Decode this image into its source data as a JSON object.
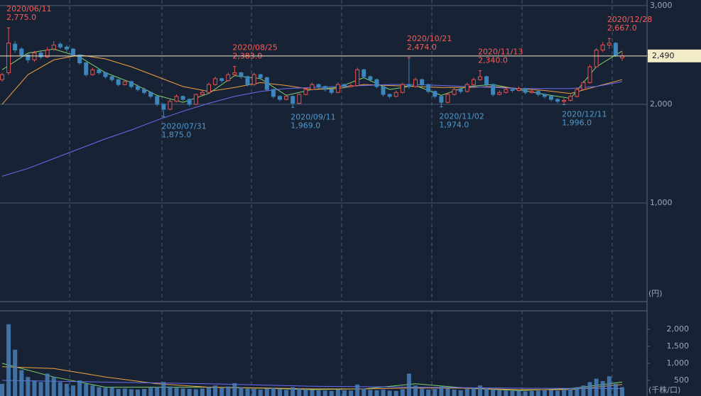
{
  "chart_data": {
    "type": "candlestick",
    "candles": [
      [
        2250,
        2320,
        2230,
        2300
      ],
      [
        2320,
        2775,
        2300,
        2620
      ],
      [
        2610,
        2640,
        2520,
        2550
      ],
      [
        2560,
        2580,
        2470,
        2500
      ],
      [
        2500,
        2520,
        2420,
        2450
      ],
      [
        2450,
        2540,
        2430,
        2520
      ],
      [
        2520,
        2550,
        2460,
        2480
      ],
      [
        2480,
        2580,
        2470,
        2550
      ],
      [
        2560,
        2640,
        2540,
        2600
      ],
      [
        2610,
        2630,
        2560,
        2580
      ],
      [
        2580,
        2600,
        2530,
        2560
      ],
      [
        2560,
        2570,
        2480,
        2500
      ],
      [
        2500,
        2510,
        2400,
        2420
      ],
      [
        2420,
        2430,
        2280,
        2300
      ],
      [
        2300,
        2370,
        2290,
        2350
      ],
      [
        2350,
        2360,
        2300,
        2320
      ],
      [
        2320,
        2330,
        2260,
        2280
      ],
      [
        2280,
        2300,
        2230,
        2250
      ],
      [
        2250,
        2260,
        2180,
        2200
      ],
      [
        2200,
        2250,
        2190,
        2230
      ],
      [
        2230,
        2240,
        2160,
        2180
      ],
      [
        2180,
        2200,
        2130,
        2150
      ],
      [
        2150,
        2170,
        2100,
        2120
      ],
      [
        2120,
        2130,
        2060,
        2080
      ],
      [
        2080,
        2090,
        1980,
        2000
      ],
      [
        2000,
        2010,
        1875,
        1950
      ],
      [
        1950,
        2050,
        1940,
        2030
      ],
      [
        2030,
        2100,
        2020,
        2080
      ],
      [
        2080,
        2090,
        2030,
        2050
      ],
      [
        2050,
        2060,
        1980,
        2000
      ],
      [
        2000,
        2110,
        1990,
        2100
      ],
      [
        2100,
        2140,
        2090,
        2120
      ],
      [
        2120,
        2220,
        2110,
        2200
      ],
      [
        2200,
        2280,
        2190,
        2260
      ],
      [
        2260,
        2270,
        2220,
        2240
      ],
      [
        2240,
        2320,
        2230,
        2300
      ],
      [
        2300,
        2383,
        2290,
        2320
      ],
      [
        2320,
        2330,
        2260,
        2280
      ],
      [
        2280,
        2290,
        2180,
        2200
      ],
      [
        2200,
        2320,
        2190,
        2300
      ],
      [
        2300,
        2310,
        2250,
        2270
      ],
      [
        2270,
        2280,
        2130,
        2150
      ],
      [
        2150,
        2160,
        2060,
        2080
      ],
      [
        2080,
        2090,
        2030,
        2050
      ],
      [
        2050,
        2100,
        2040,
        2080
      ],
      [
        2080,
        2090,
        1969,
        2010
      ],
      [
        2010,
        2110,
        2000,
        2100
      ],
      [
        2100,
        2170,
        2090,
        2150
      ],
      [
        2150,
        2220,
        2140,
        2200
      ],
      [
        2200,
        2210,
        2160,
        2180
      ],
      [
        2180,
        2190,
        2130,
        2150
      ],
      [
        2150,
        2160,
        2100,
        2120
      ],
      [
        2120,
        2220,
        2110,
        2200
      ],
      [
        2200,
        2210,
        2160,
        2180
      ],
      [
        2180,
        2210,
        2170,
        2190
      ],
      [
        2190,
        2370,
        2180,
        2350
      ],
      [
        2350,
        2360,
        2260,
        2280
      ],
      [
        2280,
        2290,
        2230,
        2250
      ],
      [
        2250,
        2260,
        2160,
        2180
      ],
      [
        2180,
        2190,
        2080,
        2100
      ],
      [
        2100,
        2110,
        2060,
        2080
      ],
      [
        2080,
        2140,
        2070,
        2120
      ],
      [
        2120,
        2220,
        2110,
        2200
      ],
      [
        2200,
        2474,
        2160,
        2180
      ],
      [
        2180,
        2270,
        2170,
        2250
      ],
      [
        2250,
        2260,
        2180,
        2200
      ],
      [
        2200,
        2210,
        2110,
        2130
      ],
      [
        2130,
        2140,
        2060,
        2080
      ],
      [
        2080,
        2090,
        1974,
        2020
      ],
      [
        2020,
        2120,
        2010,
        2100
      ],
      [
        2100,
        2170,
        2090,
        2150
      ],
      [
        2150,
        2160,
        2110,
        2130
      ],
      [
        2130,
        2220,
        2120,
        2200
      ],
      [
        2200,
        2270,
        2190,
        2250
      ],
      [
        2250,
        2340,
        2240,
        2280
      ],
      [
        2280,
        2290,
        2180,
        2200
      ],
      [
        2200,
        2210,
        2080,
        2100
      ],
      [
        2100,
        2140,
        2090,
        2120
      ],
      [
        2120,
        2170,
        2110,
        2150
      ],
      [
        2150,
        2160,
        2120,
        2140
      ],
      [
        2140,
        2180,
        2130,
        2160
      ],
      [
        2160,
        2170,
        2100,
        2120
      ],
      [
        2120,
        2150,
        2110,
        2130
      ],
      [
        2130,
        2140,
        2080,
        2100
      ],
      [
        2100,
        2110,
        2060,
        2080
      ],
      [
        2080,
        2090,
        2030,
        2050
      ],
      [
        2050,
        2060,
        2010,
        2030
      ],
      [
        2030,
        2060,
        1996,
        2040
      ],
      [
        2040,
        2100,
        2030,
        2080
      ],
      [
        2080,
        2170,
        2070,
        2150
      ],
      [
        2150,
        2240,
        2140,
        2220
      ],
      [
        2220,
        2400,
        2210,
        2380
      ],
      [
        2380,
        2570,
        2370,
        2550
      ],
      [
        2550,
        2630,
        2530,
        2600
      ],
      [
        2600,
        2667,
        2560,
        2620
      ],
      [
        2620,
        2630,
        2480,
        2500
      ],
      [
        2470,
        2530,
        2440,
        2490
      ]
    ],
    "up_color": "#e8524f",
    "down_color": "#3d86bd",
    "ylim": [
      0,
      3057
    ],
    "yticks": [
      {
        "value": 1000,
        "label": "1,000"
      },
      {
        "value": 2000,
        "label": "2,000"
      },
      {
        "value": 3000,
        "label": "3,000"
      }
    ],
    "y_unit": "(円)",
    "moving_averages": [
      {
        "color": "#7fd36b",
        "x": [
          0,
          4,
          8,
          12,
          16,
          20,
          24,
          28,
          32,
          36,
          40,
          44,
          48,
          52,
          56,
          60,
          64,
          68,
          72,
          76,
          80,
          84,
          88,
          92,
          96
        ],
        "values": [
          2350,
          2520,
          2560,
          2480,
          2320,
          2220,
          2090,
          2020,
          2110,
          2290,
          2260,
          2090,
          2150,
          2170,
          2270,
          2150,
          2190,
          2090,
          2180,
          2200,
          2150,
          2100,
          2060,
          2380,
          2540
        ]
      },
      {
        "color": "#f0a040",
        "x": [
          0,
          4,
          8,
          12,
          16,
          20,
          24,
          28,
          32,
          36,
          40,
          44,
          48,
          52,
          56,
          60,
          64,
          68,
          72,
          76,
          80,
          84,
          88,
          92,
          96
        ],
        "values": [
          2000,
          2300,
          2450,
          2500,
          2460,
          2380,
          2280,
          2180,
          2130,
          2170,
          2220,
          2190,
          2150,
          2160,
          2200,
          2190,
          2180,
          2170,
          2170,
          2180,
          2160,
          2140,
          2110,
          2180,
          2250
        ]
      },
      {
        "color": "#6a6cf0",
        "x": [
          0,
          4,
          8,
          12,
          16,
          20,
          24,
          28,
          32,
          36,
          40,
          44,
          48,
          52,
          56,
          60,
          64,
          68,
          72,
          76,
          80,
          84,
          88,
          92,
          96
        ],
        "values": [
          1270,
          1350,
          1450,
          1550,
          1650,
          1740,
          1840,
          1930,
          2010,
          2080,
          2130,
          2160,
          2170,
          2180,
          2190,
          2200,
          2200,
          2190,
          2180,
          2170,
          2160,
          2160,
          2160,
          2180,
          2230
        ]
      }
    ],
    "annotations": [
      {
        "date": "2020/06/11",
        "value": 2775,
        "value_label": "2,775.0",
        "index": 1,
        "kind": "high"
      },
      {
        "date": "2020/07/31",
        "value": 1875,
        "value_label": "1,875.0",
        "index": 25,
        "kind": "low"
      },
      {
        "date": "2020/08/25",
        "value": 2383,
        "value_label": "2,383.0",
        "index": 36,
        "kind": "high"
      },
      {
        "date": "2020/09/11",
        "value": 1969,
        "value_label": "1,969.0",
        "index": 45,
        "kind": "low"
      },
      {
        "date": "2020/10/21",
        "value": 2474,
        "value_label": "2,474.0",
        "index": 63,
        "kind": "high"
      },
      {
        "date": "2020/11/02",
        "value": 1974,
        "value_label": "1,974.0",
        "index": 68,
        "kind": "low"
      },
      {
        "date": "2020/11/13",
        "value": 2340,
        "value_label": "2,340.0",
        "index": 74,
        "kind": "high"
      },
      {
        "date": "2020/12/11",
        "value": 1996,
        "value_label": "1,996.0",
        "index": 87,
        "kind": "low"
      },
      {
        "date": "2020/12/28",
        "value": 2667,
        "value_label": "2,667.0",
        "index": 94,
        "kind": "high"
      }
    ],
    "last_price": {
      "value": 2490,
      "label": "2,490"
    },
    "volume": {
      "values": [
        400,
        2150,
        1400,
        800,
        600,
        500,
        450,
        700,
        600,
        450,
        400,
        350,
        500,
        400,
        350,
        300,
        280,
        300,
        250,
        260,
        240,
        230,
        250,
        280,
        300,
        450,
        320,
        280,
        260,
        250,
        240,
        260,
        300,
        350,
        280,
        320,
        420,
        300,
        260,
        250,
        230,
        260,
        280,
        240,
        220,
        300,
        260,
        240,
        220,
        210,
        200,
        190,
        230,
        210,
        200,
        380,
        260,
        220,
        210,
        230,
        200,
        190,
        240,
        700,
        350,
        260,
        230,
        250,
        320,
        260,
        230,
        210,
        250,
        280,
        350,
        260,
        240,
        210,
        200,
        190,
        200,
        180,
        190,
        200,
        210,
        220,
        200,
        230,
        240,
        300,
        350,
        450,
        550,
        480,
        620,
        400,
        300
      ],
      "color": "#4a7fb8",
      "ylim": [
        0,
        2500
      ],
      "yticks": [
        500,
        {
          "value": 1000,
          "label": "1,000"
        },
        {
          "value": 1500,
          "label": "1,500"
        },
        {
          "value": 2000,
          "label": "2,000"
        }
      ],
      "y_unit": "(千株/口)",
      "moving_averages": [
        {
          "color": "#7fd36b",
          "x": [
            0,
            8,
            16,
            24,
            32,
            40,
            48,
            56,
            64,
            72,
            80,
            88,
            96
          ],
          "values": [
            1000,
            600,
            300,
            300,
            300,
            270,
            230,
            250,
            400,
            270,
            200,
            260,
            450
          ]
        },
        {
          "color": "#f0a040",
          "x": [
            0,
            8,
            16,
            24,
            32,
            40,
            48,
            56,
            64,
            72,
            80,
            88,
            96
          ],
          "values": [
            900,
            850,
            600,
            400,
            300,
            280,
            250,
            250,
            280,
            270,
            230,
            230,
            380
          ]
        },
        {
          "color": "#6a6cf0",
          "x": [
            0,
            16,
            32,
            48,
            64,
            80,
            96
          ],
          "values": [
            500,
            450,
            400,
            330,
            300,
            270,
            260
          ]
        }
      ]
    }
  }
}
